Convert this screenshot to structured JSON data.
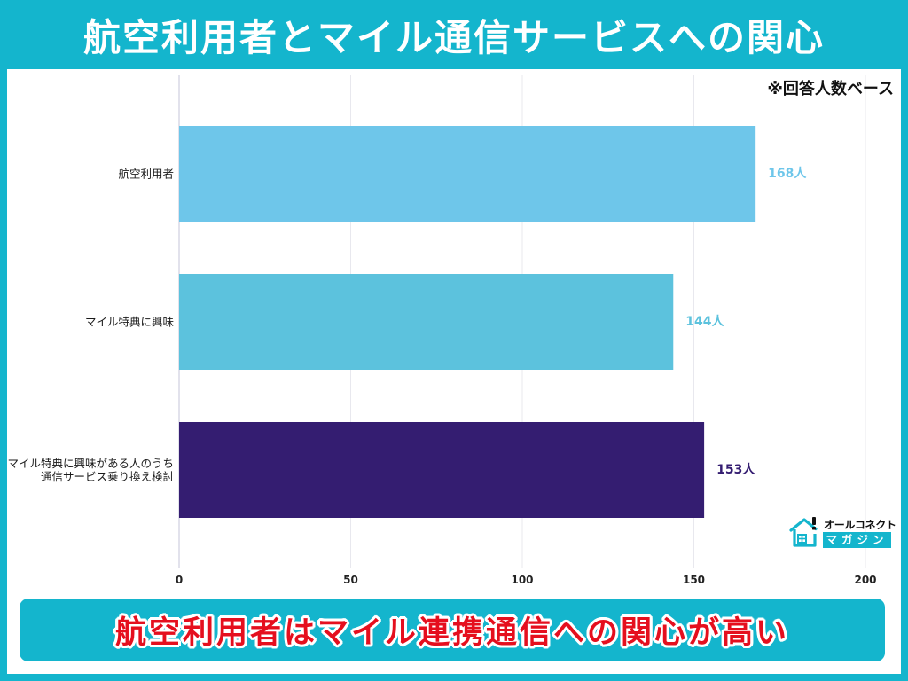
{
  "chart_data": {
    "type": "bar",
    "orientation": "horizontal",
    "title": "航空利用者とマイル通信サービスへの関心",
    "note": "※回答人数ベース",
    "categories": [
      "航空利用者",
      "マイル特典に興味",
      "マイル特典に興味がある人のうち\n通信サービス乗り換え検討"
    ],
    "values": [
      168,
      144,
      153
    ],
    "data_labels": [
      "168人",
      "144人",
      "153人"
    ],
    "bar_colors": [
      "#6ec6ea",
      "#5cc2dd",
      "#341d71"
    ],
    "xlim": [
      0,
      200
    ],
    "xticks": [
      0,
      50,
      100,
      150,
      200
    ],
    "grid": true,
    "show_legend": false
  },
  "summary": {
    "text": "航空利用者はマイル連携通信への関心が高い"
  },
  "logo": {
    "icon": "house-alert-icon",
    "name": "オールコネクト",
    "subname": "マガジン"
  },
  "theme": {
    "frame_color": "#14b5cd",
    "accent_color": "#e50f1e",
    "panel_color": "#ffffff"
  }
}
